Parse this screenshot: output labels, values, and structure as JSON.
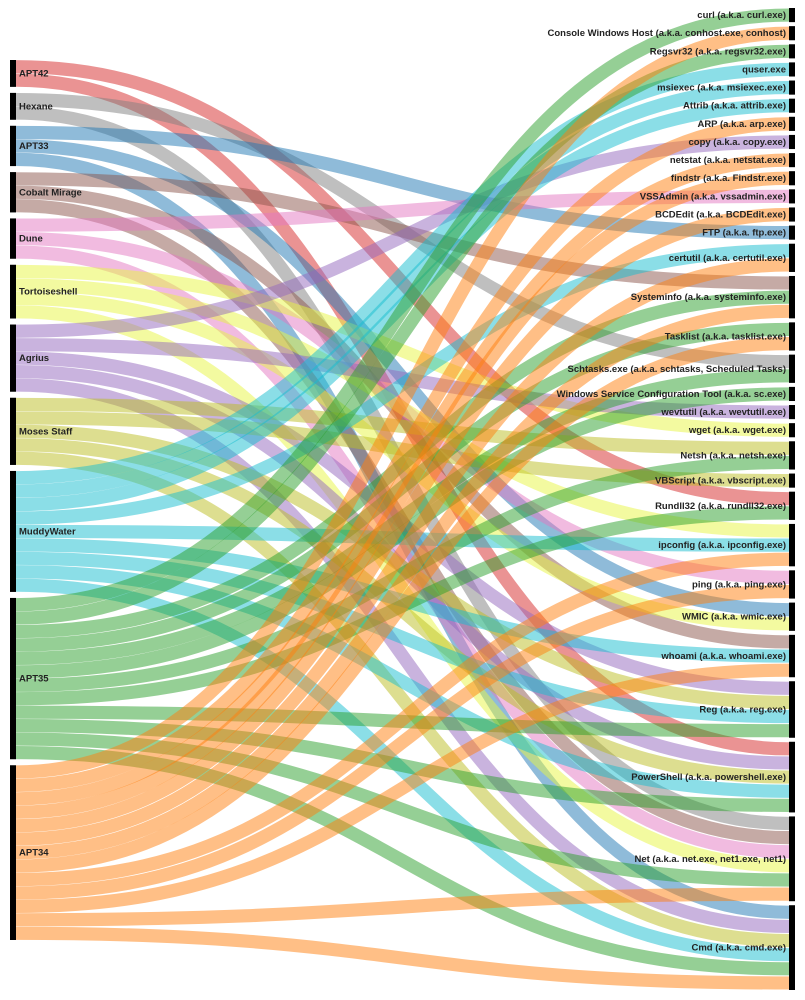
{
  "chart_data": {
    "type": "sankey",
    "sources": [
      {
        "name": "APT42",
        "color": "#d62728"
      },
      {
        "name": "Hexane",
        "color": "#7f7f7f"
      },
      {
        "name": "APT33",
        "color": "#1f77b4"
      },
      {
        "name": "Cobalt Mirage",
        "color": "#8c564b"
      },
      {
        "name": "Dune",
        "color": "#e377c2"
      },
      {
        "name": "Tortoiseshell",
        "color": "#e8f542"
      },
      {
        "name": "Agrius",
        "color": "#9467bd"
      },
      {
        "name": "Moses Staff",
        "color": "#bcbd22"
      },
      {
        "name": "MuddyWater",
        "color": "#17becf"
      },
      {
        "name": "APT35",
        "color": "#2ca02c"
      },
      {
        "name": "APT34",
        "color": "#ff7f0e"
      }
    ],
    "targets": [
      "curl (a.k.a. curl.exe)",
      "Console Windows Host (a.k.a. conhost.exe, conhost)",
      "Regsvr32 (a.k.a. regsvr32.exe)",
      "quser.exe",
      "msiexec (a.k.a. msiexec.exe)",
      "Attrib (a.k.a. attrib.exe)",
      "ARP (a.k.a. arp.exe)",
      "copy (a.k.a. copy.exe)",
      "netstat (a.k.a. netstat.exe)",
      "findstr (a.k.a. Findstr.exe)",
      "VSSAdmin (a.k.a. vssadmin.exe)",
      "BCDEdit (a.k.a. BCDEdit.exe)",
      "FTP (a.k.a. ftp.exe)",
      "certutil (a.k.a. certutil.exe)",
      "Systeminfo (a.k.a. systeminfo.exe)",
      "Tasklist (a.k.a. tasklist.exe)",
      "Schtasks.exe (a.k.a. schtasks, Scheduled Tasks)",
      "Windows Service Configuration Tool (a.k.a. sc.exe)",
      "wevtutil (a.k.a. wevtutil.exe)",
      "wget (a.k.a. wget.exe)",
      "Netsh (a.k.a. netsh.exe)",
      "VBScript (a.k.a. vbscript.exe)",
      "Rundll32 (a.k.a. rundll32.exe)",
      "ipconfig (a.k.a. ipconfig.exe)",
      "ping (a.k.a. ping.exe)",
      "WMIC (a.k.a. wmic.exe)",
      "whoami (a.k.a. whoami.exe)",
      "Reg (a.k.a. reg.exe)",
      "PowerShell (a.k.a. powershell.exe)",
      "Net (a.k.a. net.exe, net1.exe, net1)",
      "Cmd (a.k.a. cmd.exe)"
    ],
    "links": [
      {
        "source": "APT42",
        "target": "Rundll32 (a.k.a. rundll32.exe)",
        "value": 1
      },
      {
        "source": "APT42",
        "target": "PowerShell (a.k.a. powershell.exe)",
        "value": 1
      },
      {
        "source": "Hexane",
        "target": "Schtasks.exe (a.k.a. schtasks, Scheduled Tasks)",
        "value": 1
      },
      {
        "source": "Hexane",
        "target": "Net (a.k.a. net.exe, net1.exe, net1)",
        "value": 1
      },
      {
        "source": "APT33",
        "target": "FTP (a.k.a. ftp.exe)",
        "value": 1
      },
      {
        "source": "APT33",
        "target": "WMIC (a.k.a. wmic.exe)",
        "value": 1
      },
      {
        "source": "APT33",
        "target": "Cmd (a.k.a. cmd.exe)",
        "value": 1
      },
      {
        "source": "Cobalt Mirage",
        "target": "Systeminfo (a.k.a. systeminfo.exe)",
        "value": 1
      },
      {
        "source": "Cobalt Mirage",
        "target": "whoami (a.k.a. whoami.exe)",
        "value": 1
      },
      {
        "source": "Cobalt Mirage",
        "target": "Net (a.k.a. net.exe, net1.exe, net1)",
        "value": 1
      },
      {
        "source": "Dune",
        "target": "VSSAdmin (a.k.a. vssadmin.exe)",
        "value": 1
      },
      {
        "source": "Dune",
        "target": "ping (a.k.a. ping.exe)",
        "value": 1
      },
      {
        "source": "Dune",
        "target": "Net (a.k.a. net.exe, net1.exe, net1)",
        "value": 1
      },
      {
        "source": "Tortoiseshell",
        "target": "wget (a.k.a. wget.exe)",
        "value": 1
      },
      {
        "source": "Tortoiseshell",
        "target": "ipconfig (a.k.a. ipconfig.exe)",
        "value": 1
      },
      {
        "source": "Tortoiseshell",
        "target": "WMIC (a.k.a. wmic.exe)",
        "value": 1
      },
      {
        "source": "Tortoiseshell",
        "target": "Net (a.k.a. net.exe, net1.exe, net1)",
        "value": 1
      },
      {
        "source": "Agrius",
        "target": "copy (a.k.a. copy.exe)",
        "value": 1
      },
      {
        "source": "Agrius",
        "target": "wevtutil (a.k.a. wevtutil.exe)",
        "value": 1
      },
      {
        "source": "Agrius",
        "target": "Reg (a.k.a. reg.exe)",
        "value": 1
      },
      {
        "source": "Agrius",
        "target": "PowerShell (a.k.a. powershell.exe)",
        "value": 1
      },
      {
        "source": "Agrius",
        "target": "Cmd (a.k.a. cmd.exe)",
        "value": 1
      },
      {
        "source": "Moses Staff",
        "target": "Netsh (a.k.a. netsh.exe)",
        "value": 1
      },
      {
        "source": "Moses Staff",
        "target": "VBScript (a.k.a. vbscript.exe)",
        "value": 1
      },
      {
        "source": "Moses Staff",
        "target": "Reg (a.k.a. reg.exe)",
        "value": 1
      },
      {
        "source": "Moses Staff",
        "target": "PowerShell (a.k.a. powershell.exe)",
        "value": 1
      },
      {
        "source": "Moses Staff",
        "target": "Cmd (a.k.a. cmd.exe)",
        "value": 1
      },
      {
        "source": "MuddyWater",
        "target": "quser.exe",
        "value": 1
      },
      {
        "source": "MuddyWater",
        "target": "msiexec (a.k.a. msiexec.exe)",
        "value": 1
      },
      {
        "source": "MuddyWater",
        "target": "Attrib (a.k.a. attrib.exe)",
        "value": 1
      },
      {
        "source": "MuddyWater",
        "target": "certutil (a.k.a. certutil.exe)",
        "value": 1
      },
      {
        "source": "MuddyWater",
        "target": "ipconfig (a.k.a. ipconfig.exe)",
        "value": 1
      },
      {
        "source": "MuddyWater",
        "target": "whoami (a.k.a. whoami.exe)",
        "value": 1
      },
      {
        "source": "MuddyWater",
        "target": "Reg (a.k.a. reg.exe)",
        "value": 1
      },
      {
        "source": "MuddyWater",
        "target": "PowerShell (a.k.a. powershell.exe)",
        "value": 1
      },
      {
        "source": "MuddyWater",
        "target": "Cmd (a.k.a. cmd.exe)",
        "value": 1
      },
      {
        "source": "APT35",
        "target": "curl (a.k.a. curl.exe)",
        "value": 1
      },
      {
        "source": "APT35",
        "target": "Regsvr32 (a.k.a. regsvr32.exe)",
        "value": 1
      },
      {
        "source": "APT35",
        "target": "Systeminfo (a.k.a. systeminfo.exe)",
        "value": 1
      },
      {
        "source": "APT35",
        "target": "Tasklist (a.k.a. tasklist.exe)",
        "value": 1
      },
      {
        "source": "APT35",
        "target": "Schtasks.exe (a.k.a. schtasks, Scheduled Tasks)",
        "value": 1
      },
      {
        "source": "APT35",
        "target": "Windows Service Configuration Tool (a.k.a. sc.exe)",
        "value": 1
      },
      {
        "source": "APT35",
        "target": "Netsh (a.k.a. netsh.exe)",
        "value": 1
      },
      {
        "source": "APT35",
        "target": "Rundll32 (a.k.a. rundll32.exe)",
        "value": 1
      },
      {
        "source": "APT35",
        "target": "Reg (a.k.a. reg.exe)",
        "value": 1
      },
      {
        "source": "APT35",
        "target": "PowerShell (a.k.a. powershell.exe)",
        "value": 1
      },
      {
        "source": "APT35",
        "target": "Net (a.k.a. net.exe, net1.exe, net1)",
        "value": 1
      },
      {
        "source": "APT35",
        "target": "Cmd (a.k.a. cmd.exe)",
        "value": 1
      },
      {
        "source": "APT34",
        "target": "Console Windows Host (a.k.a. conhost.exe, conhost)",
        "value": 1
      },
      {
        "source": "APT34",
        "target": "ARP (a.k.a. arp.exe)",
        "value": 1
      },
      {
        "source": "APT34",
        "target": "netstat (a.k.a. netstat.exe)",
        "value": 1
      },
      {
        "source": "APT34",
        "target": "findstr (a.k.a. Findstr.exe)",
        "value": 1
      },
      {
        "source": "APT34",
        "target": "BCDEdit (a.k.a. BCDEdit.exe)",
        "value": 1
      },
      {
        "source": "APT34",
        "target": "certutil (a.k.a. certutil.exe)",
        "value": 1
      },
      {
        "source": "APT34",
        "target": "Systeminfo (a.k.a. systeminfo.exe)",
        "value": 1
      },
      {
        "source": "APT34",
        "target": "Tasklist (a.k.a. tasklist.exe)",
        "value": 1
      },
      {
        "source": "APT34",
        "target": "ipconfig (a.k.a. ipconfig.exe)",
        "value": 1
      },
      {
        "source": "APT34",
        "target": "ping (a.k.a. ping.exe)",
        "value": 1
      },
      {
        "source": "APT34",
        "target": "whoami (a.k.a. whoami.exe)",
        "value": 1
      },
      {
        "source": "APT34",
        "target": "Net (a.k.a. net.exe, net1.exe, net1)",
        "value": 1
      },
      {
        "source": "APT34",
        "target": "Cmd (a.k.a. cmd.exe)",
        "value": 1
      }
    ]
  }
}
